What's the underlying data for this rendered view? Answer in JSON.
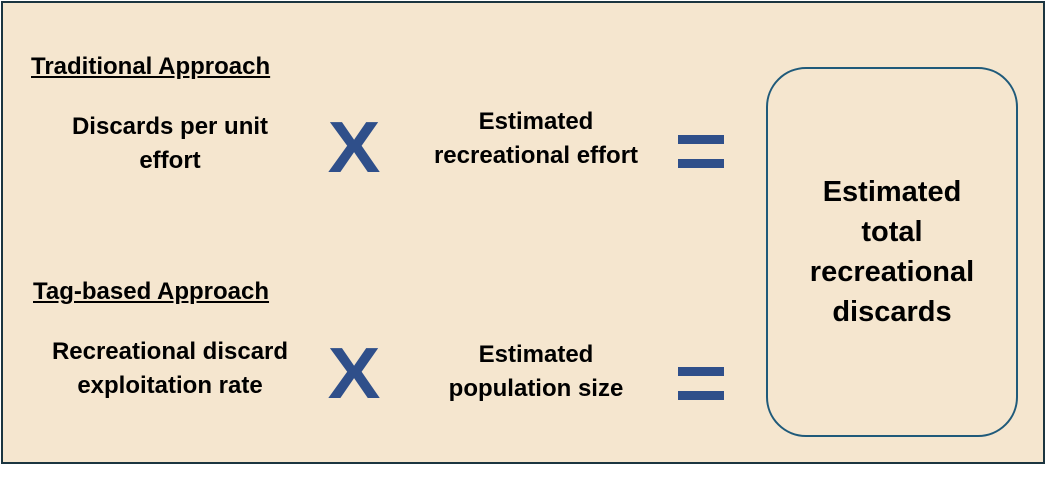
{
  "traditional": {
    "heading": "Traditional Approach",
    "term1": "Discards per unit\neffort",
    "operator1": "X",
    "term2": "Estimated\nrecreational effort"
  },
  "tag_based": {
    "heading": "Tag-based Approach",
    "term1": "Recreational discard\nexploitation rate",
    "operator1": "X",
    "term2": "Estimated\npopulation size"
  },
  "result": {
    "label": "Estimated\ntotal\nrecreational\ndiscards"
  },
  "colors": {
    "background": "#f5e6cf",
    "frame_border": "#1b3540",
    "operator": "#2f4f8a",
    "result_border": "#1f5a7a"
  }
}
